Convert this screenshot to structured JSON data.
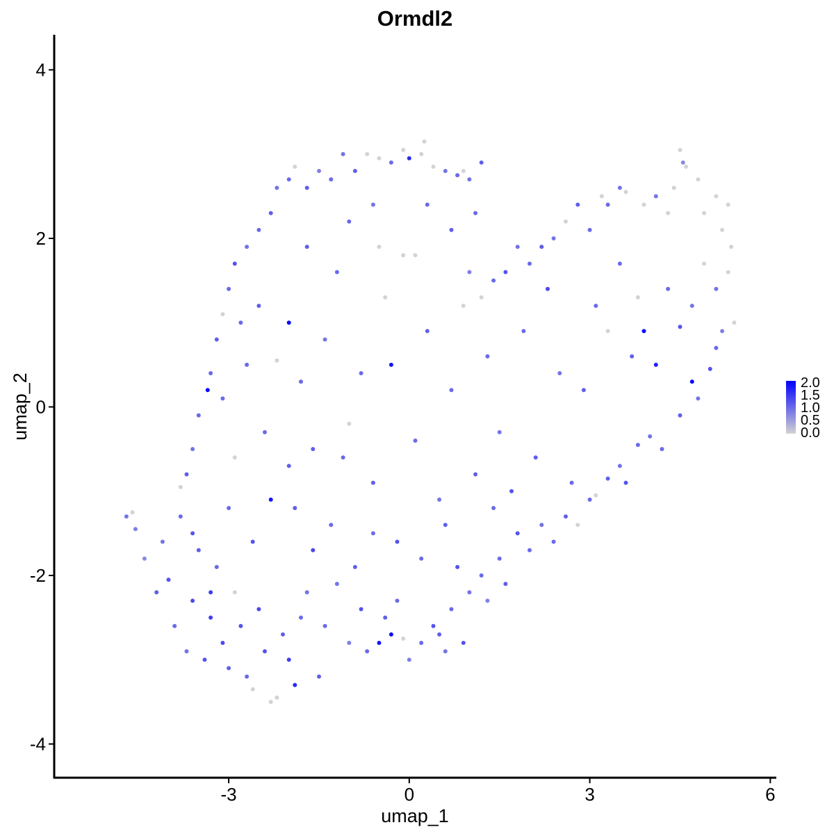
{
  "chart_data": {
    "type": "scatter",
    "title": "Ormdl2",
    "xlabel": "umap_1",
    "ylabel": "umap_2",
    "xlim": [
      -5.9,
      6.1
    ],
    "ylim": [
      -4.4,
      4.4
    ],
    "x_ticks": [
      -3,
      0,
      3,
      6
    ],
    "x_tick_labels": [
      "-3",
      "0",
      "3",
      "6"
    ],
    "y_ticks": [
      -4,
      -2,
      0,
      2,
      4
    ],
    "y_tick_labels": [
      "-4",
      "-2",
      "0",
      "2",
      "4"
    ],
    "grid": false,
    "color_scale": {
      "name": "expression",
      "low_color": "#d3d3d3",
      "high_color": "#0000ff",
      "range": [
        0.0,
        2.0
      ],
      "breaks": [
        0.0,
        0.5,
        1.0,
        1.5,
        2.0
      ],
      "break_labels": [
        "0.0",
        "0.5",
        "1.0",
        "1.5",
        "2.0"
      ]
    },
    "legend_position": "right",
    "points": [
      {
        "x": -4.7,
        "y": -1.3,
        "v": 0.9
      },
      {
        "x": -4.6,
        "y": -1.25,
        "v": 0.0
      },
      {
        "x": -4.55,
        "y": -1.45,
        "v": 0.8
      },
      {
        "x": -4.4,
        "y": -1.8,
        "v": 0.7
      },
      {
        "x": -4.2,
        "y": -2.2,
        "v": 1.1
      },
      {
        "x": -4.1,
        "y": -1.6,
        "v": 0.9
      },
      {
        "x": -4.0,
        "y": -2.05,
        "v": 1.2
      },
      {
        "x": -3.9,
        "y": -2.6,
        "v": 1.0
      },
      {
        "x": -3.8,
        "y": -1.3,
        "v": 1.0
      },
      {
        "x": -3.7,
        "y": -2.9,
        "v": 0.9
      },
      {
        "x": -3.6,
        "y": -2.3,
        "v": 1.3
      },
      {
        "x": -3.5,
        "y": -1.7,
        "v": 1.1
      },
      {
        "x": -3.4,
        "y": -3.0,
        "v": 1.2
      },
      {
        "x": -3.3,
        "y": -2.5,
        "v": 1.4
      },
      {
        "x": -3.2,
        "y": -1.9,
        "v": 1.0
      },
      {
        "x": -3.1,
        "y": -2.8,
        "v": 1.3
      },
      {
        "x": -3.0,
        "y": -3.1,
        "v": 1.1
      },
      {
        "x": -2.9,
        "y": -2.2,
        "v": 0.0
      },
      {
        "x": -2.8,
        "y": -2.6,
        "v": 1.2
      },
      {
        "x": -2.7,
        "y": -3.2,
        "v": 1.0
      },
      {
        "x": -2.6,
        "y": -3.35,
        "v": 0.0
      },
      {
        "x": -2.5,
        "y": -2.4,
        "v": 1.3
      },
      {
        "x": -2.4,
        "y": -2.9,
        "v": 1.2
      },
      {
        "x": -2.3,
        "y": -3.5,
        "v": 0.0
      },
      {
        "x": -2.2,
        "y": -3.45,
        "v": 0.0
      },
      {
        "x": -2.1,
        "y": -2.7,
        "v": 1.1
      },
      {
        "x": -2.0,
        "y": -3.0,
        "v": 1.4
      },
      {
        "x": -1.9,
        "y": -3.3,
        "v": 1.6
      },
      {
        "x": -1.8,
        "y": -2.5,
        "v": 1.0
      },
      {
        "x": -1.7,
        "y": -2.2,
        "v": 0.9
      },
      {
        "x": -1.5,
        "y": -3.2,
        "v": 1.1
      },
      {
        "x": -1.4,
        "y": -2.6,
        "v": 1.0
      },
      {
        "x": -1.2,
        "y": -2.1,
        "v": 0.9
      },
      {
        "x": -1.0,
        "y": -2.8,
        "v": 0.8
      },
      {
        "x": -0.8,
        "y": -2.4,
        "v": 1.2
      },
      {
        "x": -0.7,
        "y": -2.9,
        "v": 1.0
      },
      {
        "x": -0.5,
        "y": -2.8,
        "v": 1.8
      },
      {
        "x": -0.4,
        "y": -2.5,
        "v": 1.1
      },
      {
        "x": -0.3,
        "y": -2.7,
        "v": 1.9
      },
      {
        "x": -0.2,
        "y": -2.3,
        "v": 1.0
      },
      {
        "x": -0.1,
        "y": -2.75,
        "v": 0.0
      },
      {
        "x": 0.0,
        "y": -3.0,
        "v": 0.8
      },
      {
        "x": 0.2,
        "y": -2.8,
        "v": 1.0
      },
      {
        "x": 0.4,
        "y": -2.6,
        "v": 1.2
      },
      {
        "x": 0.5,
        "y": -2.7,
        "v": 1.1
      },
      {
        "x": 0.6,
        "y": -2.9,
        "v": 0.9
      },
      {
        "x": 0.7,
        "y": -2.4,
        "v": 1.0
      },
      {
        "x": 0.9,
        "y": -2.8,
        "v": 1.2
      },
      {
        "x": 1.0,
        "y": -2.2,
        "v": 0.9
      },
      {
        "x": 1.2,
        "y": -2.0,
        "v": 1.0
      },
      {
        "x": 1.3,
        "y": -2.3,
        "v": 0.8
      },
      {
        "x": 1.5,
        "y": -1.8,
        "v": 1.0
      },
      {
        "x": 1.6,
        "y": -2.1,
        "v": 1.1
      },
      {
        "x": 1.8,
        "y": -1.5,
        "v": 1.2
      },
      {
        "x": 2.0,
        "y": -1.7,
        "v": 1.0
      },
      {
        "x": 2.2,
        "y": -1.4,
        "v": 0.9
      },
      {
        "x": 2.4,
        "y": -1.6,
        "v": 1.0
      },
      {
        "x": 2.6,
        "y": -1.3,
        "v": 1.1
      },
      {
        "x": 2.8,
        "y": -1.4,
        "v": 0.0
      },
      {
        "x": 3.0,
        "y": -1.1,
        "v": 1.0
      },
      {
        "x": 3.1,
        "y": -1.05,
        "v": 0.0
      },
      {
        "x": 3.3,
        "y": -0.85,
        "v": 1.1
      },
      {
        "x": 3.5,
        "y": -0.7,
        "v": 0.9
      },
      {
        "x": 3.6,
        "y": -0.9,
        "v": 1.2
      },
      {
        "x": 3.8,
        "y": -0.45,
        "v": 1.0
      },
      {
        "x": 4.0,
        "y": -0.35,
        "v": 0.9
      },
      {
        "x": 4.2,
        "y": -0.5,
        "v": 1.0
      },
      {
        "x": 4.5,
        "y": -0.1,
        "v": 1.1
      },
      {
        "x": 4.8,
        "y": 0.1,
        "v": 0.9
      },
      {
        "x": 4.7,
        "y": 0.3,
        "v": 1.9
      },
      {
        "x": 5.0,
        "y": 0.45,
        "v": 1.2
      },
      {
        "x": 5.1,
        "y": 0.7,
        "v": 1.0
      },
      {
        "x": 5.2,
        "y": 0.9,
        "v": 0.8
      },
      {
        "x": 5.4,
        "y": 1.0,
        "v": 0.0
      },
      {
        "x": 5.1,
        "y": 1.4,
        "v": 0.9
      },
      {
        "x": 5.3,
        "y": 1.6,
        "v": 0.0
      },
      {
        "x": 5.35,
        "y": 1.9,
        "v": 0.0
      },
      {
        "x": 5.2,
        "y": 2.1,
        "v": 0.0
      },
      {
        "x": 5.3,
        "y": 2.4,
        "v": 0.0
      },
      {
        "x": 5.1,
        "y": 2.5,
        "v": 0.0
      },
      {
        "x": 4.9,
        "y": 2.3,
        "v": 0.0
      },
      {
        "x": 4.8,
        "y": 2.7,
        "v": 0.0
      },
      {
        "x": 4.6,
        "y": 2.85,
        "v": 0.0
      },
      {
        "x": 4.5,
        "y": 3.05,
        "v": 0.0
      },
      {
        "x": 4.4,
        "y": 2.6,
        "v": 0.0
      },
      {
        "x": 4.55,
        "y": 2.9,
        "v": 0.7
      },
      {
        "x": 4.3,
        "y": 2.3,
        "v": 0.0
      },
      {
        "x": 4.1,
        "y": 2.5,
        "v": 0.9
      },
      {
        "x": 3.9,
        "y": 2.4,
        "v": 0.0
      },
      {
        "x": 3.6,
        "y": 2.55,
        "v": 0.0
      },
      {
        "x": 3.5,
        "y": 2.6,
        "v": 0.9
      },
      {
        "x": 3.3,
        "y": 2.4,
        "v": 1.0
      },
      {
        "x": 3.2,
        "y": 2.5,
        "v": 0.0
      },
      {
        "x": 3.0,
        "y": 2.1,
        "v": 1.0
      },
      {
        "x": 2.8,
        "y": 2.4,
        "v": 1.1
      },
      {
        "x": 2.6,
        "y": 2.2,
        "v": 0.0
      },
      {
        "x": 2.4,
        "y": 2.0,
        "v": 0.9
      },
      {
        "x": 2.2,
        "y": 1.9,
        "v": 1.1
      },
      {
        "x": 2.0,
        "y": 1.7,
        "v": 1.0
      },
      {
        "x": 1.8,
        "y": 1.9,
        "v": 0.9
      },
      {
        "x": 1.6,
        "y": 1.6,
        "v": 1.2
      },
      {
        "x": 1.4,
        "y": 1.5,
        "v": 1.0
      },
      {
        "x": 1.2,
        "y": 1.3,
        "v": 0.0
      },
      {
        "x": 1.0,
        "y": 1.6,
        "v": 0.8
      },
      {
        "x": 1.1,
        "y": 2.3,
        "v": 1.0
      },
      {
        "x": 1.2,
        "y": 2.9,
        "v": 1.1
      },
      {
        "x": 1.0,
        "y": 2.7,
        "v": 0.9
      },
      {
        "x": 0.9,
        "y": 2.8,
        "v": 0.0
      },
      {
        "x": 0.8,
        "y": 2.75,
        "v": 1.0
      },
      {
        "x": 0.6,
        "y": 2.8,
        "v": 0.9
      },
      {
        "x": 0.4,
        "y": 2.85,
        "v": 0.0
      },
      {
        "x": 0.2,
        "y": 3.0,
        "v": 0.0
      },
      {
        "x": 0.25,
        "y": 3.15,
        "v": 0.0
      },
      {
        "x": 0.0,
        "y": 2.95,
        "v": 1.6
      },
      {
        "x": -0.1,
        "y": 3.05,
        "v": 0.0
      },
      {
        "x": -0.3,
        "y": 2.9,
        "v": 1.0
      },
      {
        "x": -0.5,
        "y": 2.95,
        "v": 0.0
      },
      {
        "x": -0.7,
        "y": 3.0,
        "v": 0.0
      },
      {
        "x": -0.9,
        "y": 2.8,
        "v": 1.1
      },
      {
        "x": -1.1,
        "y": 3.0,
        "v": 0.9
      },
      {
        "x": -1.3,
        "y": 2.7,
        "v": 1.0
      },
      {
        "x": -1.5,
        "y": 2.8,
        "v": 0.8
      },
      {
        "x": -1.7,
        "y": 2.6,
        "v": 1.1
      },
      {
        "x": -1.9,
        "y": 2.85,
        "v": 0.0
      },
      {
        "x": -2.0,
        "y": 2.7,
        "v": 1.0
      },
      {
        "x": -2.2,
        "y": 2.6,
        "v": 0.9
      },
      {
        "x": -2.3,
        "y": 2.3,
        "v": 1.1
      },
      {
        "x": -2.5,
        "y": 2.1,
        "v": 1.0
      },
      {
        "x": -2.7,
        "y": 1.9,
        "v": 0.9
      },
      {
        "x": -2.9,
        "y": 1.7,
        "v": 1.2
      },
      {
        "x": -3.0,
        "y": 1.4,
        "v": 1.0
      },
      {
        "x": -3.1,
        "y": 1.1,
        "v": 0.0
      },
      {
        "x": -3.2,
        "y": 0.8,
        "v": 1.1
      },
      {
        "x": -3.3,
        "y": 0.4,
        "v": 1.0
      },
      {
        "x": -3.35,
        "y": 0.2,
        "v": 1.9
      },
      {
        "x": -3.5,
        "y": -0.1,
        "v": 1.0
      },
      {
        "x": -3.6,
        "y": -0.5,
        "v": 0.9
      },
      {
        "x": -3.7,
        "y": -0.8,
        "v": 1.1
      },
      {
        "x": -3.8,
        "y": -0.95,
        "v": 0.0
      },
      {
        "x": -2.9,
        "y": -0.6,
        "v": 0.0
      },
      {
        "x": -2.7,
        "y": 0.5,
        "v": 1.0
      },
      {
        "x": -2.5,
        "y": 1.2,
        "v": 1.1
      },
      {
        "x": -2.2,
        "y": 0.55,
        "v": 0.0
      },
      {
        "x": -2.0,
        "y": 1.0,
        "v": 1.9
      },
      {
        "x": -1.8,
        "y": 0.3,
        "v": 1.0
      },
      {
        "x": -1.6,
        "y": -0.5,
        "v": 1.1
      },
      {
        "x": -1.4,
        "y": 0.8,
        "v": 0.9
      },
      {
        "x": -1.2,
        "y": 1.6,
        "v": 1.0
      },
      {
        "x": -1.0,
        "y": -0.2,
        "v": 0.0
      },
      {
        "x": -0.8,
        "y": 0.4,
        "v": 1.0
      },
      {
        "x": -0.6,
        "y": -0.9,
        "v": 1.1
      },
      {
        "x": -0.4,
        "y": 1.3,
        "v": 0.0
      },
      {
        "x": -0.3,
        "y": 0.5,
        "v": 1.8
      },
      {
        "x": -0.1,
        "y": 1.8,
        "v": 0.0
      },
      {
        "x": 0.1,
        "y": -0.4,
        "v": 1.0
      },
      {
        "x": 0.3,
        "y": 0.9,
        "v": 1.1
      },
      {
        "x": 0.5,
        "y": -1.1,
        "v": 0.9
      },
      {
        "x": 0.7,
        "y": 0.2,
        "v": 1.0
      },
      {
        "x": 0.9,
        "y": 1.2,
        "v": 0.0
      },
      {
        "x": 1.1,
        "y": -0.8,
        "v": 1.1
      },
      {
        "x": 1.3,
        "y": 0.6,
        "v": 1.0
      },
      {
        "x": 1.5,
        "y": -0.3,
        "v": 0.9
      },
      {
        "x": 1.7,
        "y": -1.0,
        "v": 1.2
      },
      {
        "x": 1.9,
        "y": 0.9,
        "v": 1.0
      },
      {
        "x": 2.1,
        "y": -0.6,
        "v": 1.1
      },
      {
        "x": 2.3,
        "y": 1.4,
        "v": 1.3
      },
      {
        "x": 2.5,
        "y": 0.4,
        "v": 0.9
      },
      {
        "x": 2.7,
        "y": -0.9,
        "v": 1.0
      },
      {
        "x": 2.9,
        "y": 0.2,
        "v": 1.1
      },
      {
        "x": 3.1,
        "y": 1.2,
        "v": 1.0
      },
      {
        "x": 3.3,
        "y": 0.9,
        "v": 0.0
      },
      {
        "x": 3.5,
        "y": 1.7,
        "v": 1.0
      },
      {
        "x": 3.7,
        "y": 0.6,
        "v": 1.1
      },
      {
        "x": 3.9,
        "y": 0.9,
        "v": 1.9
      },
      {
        "x": 4.1,
        "y": 0.5,
        "v": 1.7
      },
      {
        "x": 4.3,
        "y": 1.4,
        "v": 1.0
      },
      {
        "x": 4.5,
        "y": 0.95,
        "v": 1.2
      },
      {
        "x": 4.7,
        "y": 1.2,
        "v": 0.9
      },
      {
        "x": 4.9,
        "y": 1.7,
        "v": 0.0
      },
      {
        "x": 3.8,
        "y": 1.3,
        "v": 0.0
      },
      {
        "x": -1.6,
        "y": -1.7,
        "v": 1.3
      },
      {
        "x": -1.9,
        "y": -1.2,
        "v": 1.1
      },
      {
        "x": -2.3,
        "y": -1.1,
        "v": 1.8
      },
      {
        "x": -2.6,
        "y": -1.6,
        "v": 1.2
      },
      {
        "x": -3.0,
        "y": -1.2,
        "v": 1.0
      },
      {
        "x": -3.3,
        "y": -2.2,
        "v": 1.4
      },
      {
        "x": -3.6,
        "y": -1.5,
        "v": 1.2
      },
      {
        "x": -1.3,
        "y": -1.4,
        "v": 1.0
      },
      {
        "x": -0.9,
        "y": -1.9,
        "v": 1.1
      },
      {
        "x": -0.6,
        "y": -1.5,
        "v": 1.0
      },
      {
        "x": -0.2,
        "y": -1.6,
        "v": 1.2
      },
      {
        "x": 0.2,
        "y": -1.8,
        "v": 1.0
      },
      {
        "x": 0.6,
        "y": -1.4,
        "v": 1.1
      },
      {
        "x": 0.8,
        "y": -1.9,
        "v": 1.2
      },
      {
        "x": 1.4,
        "y": -1.2,
        "v": 1.0
      },
      {
        "x": -2.4,
        "y": -0.3,
        "v": 1.0
      },
      {
        "x": -2.0,
        "y": -0.7,
        "v": 1.1
      },
      {
        "x": -1.1,
        "y": -0.6,
        "v": 1.0
      },
      {
        "x": -3.1,
        "y": 0.1,
        "v": 1.0
      },
      {
        "x": -2.8,
        "y": 1.0,
        "v": 1.0
      },
      {
        "x": -1.7,
        "y": 1.9,
        "v": 1.1
      },
      {
        "x": -1.0,
        "y": 2.2,
        "v": 1.0
      },
      {
        "x": -0.6,
        "y": 2.4,
        "v": 0.9
      },
      {
        "x": 0.3,
        "y": 2.4,
        "v": 1.0
      },
      {
        "x": 0.7,
        "y": 2.1,
        "v": 1.1
      },
      {
        "x": -0.5,
        "y": 1.9,
        "v": 0.0
      },
      {
        "x": 0.1,
        "y": 1.8,
        "v": 0.0
      }
    ]
  }
}
